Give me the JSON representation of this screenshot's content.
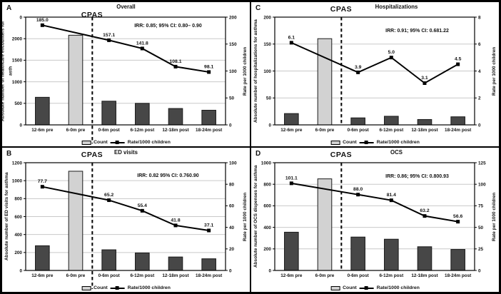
{
  "figure_title": "CPAS interrupted time series figure",
  "legend": {
    "count_label": "Count",
    "rate_label": "Rate/1000 children"
  },
  "colors": {
    "bar_dark": "#474747",
    "bar_light": "#d2d2d2",
    "bar_border": "#1a1a1a",
    "line": "#000000",
    "gridline": "#c9c9c9",
    "axis": "#000000",
    "background": "#ffffff"
  },
  "panels": [
    {
      "letter": "A",
      "title": "Overall",
      "cpas_label": "CPAS",
      "irr_text": "IRR: 0.85; 95% CI: 0.80– 0.90",
      "left_axis_title": "Absolute number of healthcare encounters for asth",
      "right_axis_title": "Rate per 1000 children"
    },
    {
      "letter": "C",
      "title": "Hospitalizations",
      "cpas_label": "CPAS",
      "irr_text": "IRR: 0.91; 95% CI: 0.681.22",
      "left_axis_title": "Absolute number of hospitalizations for asthma",
      "right_axis_title": "Rate per 1000 children"
    },
    {
      "letter": "B",
      "title": "ED visits",
      "cpas_label": "CPAS",
      "irr_text": "IRR: 0.82 95% CI: 0.760.90",
      "left_axis_title": "Absolute number of ED visits for asthma",
      "right_axis_title": "Rate per 1000 children"
    },
    {
      "letter": "D",
      "title": "OCS",
      "cpas_label": "CPAS",
      "irr_text": "IRR: 0.86; 95% CI: 0.800.93",
      "left_axis_title": "Absolute number of OCS dispenses for asthma",
      "right_axis_title": "Rate per 1000 children"
    }
  ],
  "chart_data": [
    {
      "type": "bar+line",
      "title": "Overall",
      "categories": [
        "12-6m pre",
        "6-0m pre",
        "0-6m post",
        "6-12m post",
        "12-18m post",
        "18-24m post"
      ],
      "series": [
        {
          "name": "Count",
          "type": "bar",
          "values": [
            640,
            2080,
            550,
            500,
            380,
            340
          ],
          "highlight_index": 1
        },
        {
          "name": "Rate/1000 children",
          "type": "line",
          "values": [
            185.0,
            null,
            157.1,
            141.8,
            108.1,
            98.1
          ],
          "labels": [
            "185.0",
            "157.1",
            "141.8",
            "108.1",
            "98.1"
          ]
        }
      ],
      "left_axis": {
        "ticks": [
          "0",
          "500",
          "1000",
          "1500",
          "2000",
          "0"
        ],
        "max": 2500
      },
      "right_axis": {
        "ticks": [
          "0",
          "50",
          "100",
          "150",
          "200"
        ],
        "max": 200
      },
      "annotation": "IRR: 0.85; 95% CI: 0.80– 0.90",
      "intervention_line": {
        "label": "CPAS",
        "after_category_index": 1,
        "extends_below_axis": true
      },
      "grid": true,
      "legend_position": "bottom"
    },
    {
      "type": "bar+line",
      "title": "Hospitalizations",
      "categories": [
        "12-6m pre",
        "6-0m pre",
        "0-6m post",
        "6-12m post",
        "12-18m post",
        "18-24m post"
      ],
      "series": [
        {
          "name": "Count",
          "type": "bar",
          "values": [
            21,
            160,
            13,
            16,
            10,
            15
          ],
          "highlight_index": 1
        },
        {
          "name": "Rate/1000 children",
          "type": "line",
          "values": [
            6.1,
            null,
            3.9,
            5.0,
            3.1,
            4.5
          ],
          "labels": [
            "6.1",
            "3.9",
            "5.0",
            "3.1",
            "4.5"
          ]
        }
      ],
      "left_axis": {
        "ticks": [
          "0",
          "50",
          "100",
          "150",
          "200"
        ],
        "max": 200
      },
      "right_axis": {
        "ticks": [
          "0",
          "2",
          "4",
          "6",
          "8"
        ],
        "max": 8
      },
      "annotation": "IRR: 0.91; 95% CI: 0.681.22",
      "intervention_line": {
        "label": "CPAS",
        "after_category_index": 1,
        "extends_below_axis": false
      },
      "grid": true,
      "legend_position": "bottom"
    },
    {
      "type": "bar+line",
      "title": "ED visits",
      "categories": [
        "12-6m pre",
        "6-0m pre",
        "0-6m post",
        "6-12m post",
        "12-18m post",
        "18-24m post"
      ],
      "series": [
        {
          "name": "Count",
          "type": "bar",
          "values": [
            275,
            1105,
            230,
            195,
            150,
            130
          ],
          "highlight_index": 1
        },
        {
          "name": "Rate/1000 children",
          "type": "line",
          "values": [
            77.7,
            null,
            65.2,
            55.4,
            41.8,
            37.1
          ],
          "labels": [
            "77.7",
            "65.2",
            "55.4",
            "41.8",
            "37.1"
          ]
        }
      ],
      "left_axis": {
        "ticks": [
          "0",
          "200",
          "400",
          "600",
          "800",
          "1000",
          "1200"
        ],
        "max": 1200
      },
      "right_axis": {
        "ticks": [
          "0",
          "20",
          "40",
          "60",
          "80",
          "100"
        ],
        "max": 100
      },
      "annotation": "IRR: 0.82 95% CI: 0.760.90",
      "intervention_line": {
        "label": "CPAS",
        "after_category_index": 1,
        "extends_below_axis": true
      },
      "grid": true,
      "legend_position": "bottom"
    },
    {
      "type": "bar+line",
      "title": "OCS",
      "categories": [
        "12-6m pre",
        "6-0m pre",
        "0-6m post",
        "6-12m post",
        "12-18m post",
        "18-24m post"
      ],
      "series": [
        {
          "name": "Count",
          "type": "bar",
          "values": [
            355,
            850,
            310,
            290,
            220,
            195
          ],
          "highlight_index": 1
        },
        {
          "name": "Rate/1000 children",
          "type": "line",
          "values": [
            101.1,
            null,
            88.0,
            81.4,
            63.2,
            56.6
          ],
          "labels": [
            "101.1",
            "88.0",
            "81.4",
            "63.2",
            "56.6"
          ]
        }
      ],
      "left_axis": {
        "ticks": [
          "0",
          "200",
          "400",
          "600",
          "800",
          "1000"
        ],
        "max": 1000
      },
      "right_axis": {
        "ticks": [
          "0",
          "25",
          "50",
          "75",
          "100",
          "125"
        ],
        "max": 125
      },
      "annotation": "IRR: 0.86; 95% CI: 0.800.93",
      "intervention_line": {
        "label": "CPAS",
        "after_category_index": 1,
        "extends_below_axis": false
      },
      "grid": true,
      "legend_position": "bottom"
    }
  ]
}
